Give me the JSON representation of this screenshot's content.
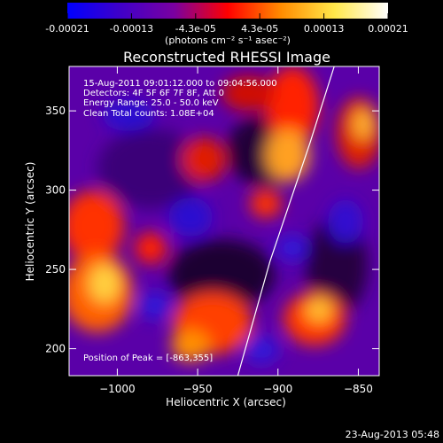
{
  "colorbar": {
    "colors": [
      "#0000ff",
      "#4000c8",
      "#7a00a0",
      "#ff0000",
      "#ff8c00",
      "#ffe84a",
      "#ffffff"
    ],
    "ticks": [
      "-0.00021",
      "-0.00013",
      "-4.3e-05",
      "4.3e-05",
      "0.00013",
      "0.00021"
    ],
    "units": "(photons cm⁻² s⁻¹ asec⁻²)"
  },
  "title": "Reconstructed RHESSI Image",
  "info": {
    "line1": "15-Aug-2011 09:01:12.000 to 09:04:56.000",
    "line2": "Detectors: 4F 5F 6F 7F 8F, Att 0",
    "line3": "Energy Range: 25.0 - 50.0 keV",
    "line4": "Clean     Total counts: 1.08E+04"
  },
  "peak_label": "Position of Peak = [-863,355]",
  "axes": {
    "xlabel": "Heliocentric X (arcsec)",
    "ylabel": "Heliocentric Y (arcsec)",
    "xlim": [
      -1030,
      -837
    ],
    "ylim": [
      183,
      378
    ],
    "xticks": [
      {
        "value": -1000,
        "label": "−1000"
      },
      {
        "value": -950,
        "label": "−950"
      },
      {
        "value": -900,
        "label": "−900"
      },
      {
        "value": -850,
        "label": "−850"
      }
    ],
    "yticks": [
      {
        "value": 200,
        "label": "200"
      },
      {
        "value": 250,
        "label": "250"
      },
      {
        "value": 300,
        "label": "300"
      },
      {
        "value": 350,
        "label": "350"
      }
    ]
  },
  "limb_line": {
    "x": [
      -925,
      -905,
      -880,
      -865
    ],
    "y": [
      183,
      255,
      330,
      378
    ]
  },
  "timestamp": "23-Aug-2013 05:48"
}
